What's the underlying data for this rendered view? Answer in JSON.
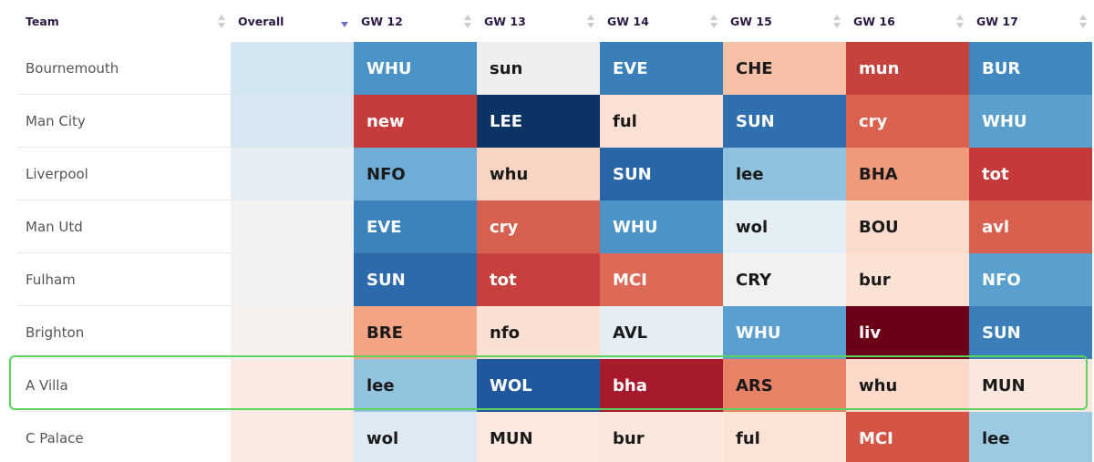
{
  "table": {
    "columns": [
      "Team",
      "Overall",
      "GW 12",
      "GW 13",
      "GW 14",
      "GW 15",
      "GW 16",
      "GW 17"
    ],
    "rows": [
      {
        "team": "Bournemouth",
        "fixtures": [
          "WHU",
          "sun",
          "EVE",
          "CHE",
          "mun",
          "BUR"
        ]
      },
      {
        "team": "Man City",
        "fixtures": [
          "new",
          "LEE",
          "ful",
          "SUN",
          "cry",
          "WHU"
        ]
      },
      {
        "team": "Liverpool",
        "fixtures": [
          "NFO",
          "whu",
          "SUN",
          "lee",
          "BHA",
          "tot"
        ]
      },
      {
        "team": "Man Utd",
        "fixtures": [
          "EVE",
          "cry",
          "WHU",
          "wol",
          "BOU",
          "avl"
        ]
      },
      {
        "team": "Fulham",
        "fixtures": [
          "SUN",
          "tot",
          "MCI",
          "CRY",
          "bur",
          "NFO"
        ]
      },
      {
        "team": "Brighton",
        "fixtures": [
          "BRE",
          "nfo",
          "AVL",
          "WHU",
          "liv",
          "SUN"
        ]
      },
      {
        "team": "A Villa",
        "fixtures": [
          "lee",
          "WOL",
          "bha",
          "ARS",
          "whu",
          "MUN"
        ]
      },
      {
        "team": "C Palace",
        "fixtures": [
          "wol",
          "MUN",
          "bur",
          "ful",
          "MCI",
          "lee"
        ]
      }
    ]
  }
}
